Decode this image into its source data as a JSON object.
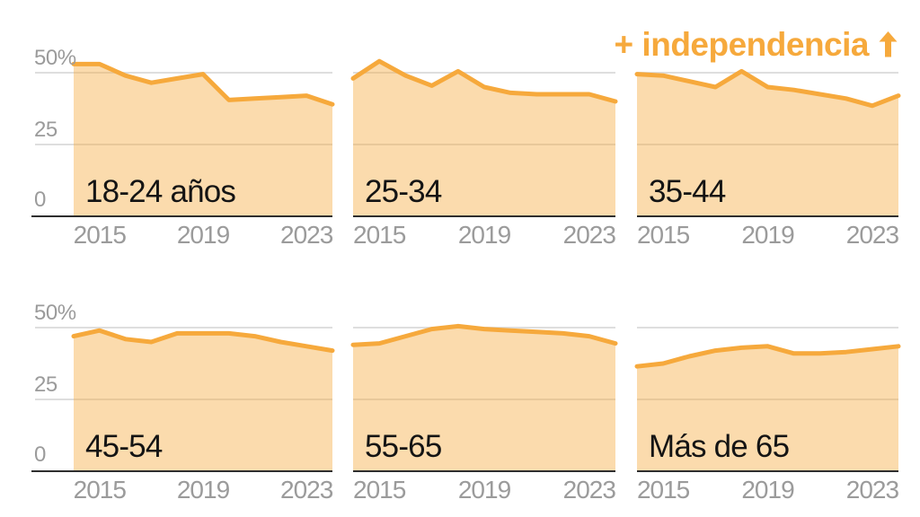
{
  "heading": {
    "label": "+ independencia",
    "arrow_icon": "up-arrow"
  },
  "colors": {
    "accent": "#F6A93C",
    "area_fill_opacity": 0.42,
    "grid": "#DEDEDE",
    "axis": "#2E2E2E",
    "tick_text": "#9B9B9B",
    "label_text": "#141414",
    "background": "#FFFFFF"
  },
  "chart_data": {
    "type": "area",
    "layout": "small-multiples 2 rows x 3 columns",
    "x": [
      2014,
      2015,
      2016,
      2017,
      2018,
      2019,
      2020,
      2021,
      2022,
      2023,
      2024
    ],
    "x_tick_years": [
      2015,
      2019,
      2023
    ],
    "x_tick_labels": [
      "2015",
      "2019",
      "2023"
    ],
    "y_tick_labels": [
      "50%",
      "25",
      "0"
    ],
    "y_tick_values": [
      50,
      25,
      0
    ],
    "ylim": [
      0,
      58
    ],
    "grid": "horizontal gridlines at 25 and 50, dark baseline at 0",
    "legend": "none",
    "panels": [
      {
        "label": "18-24 años",
        "values": [
          53,
          53,
          49,
          46.5,
          48,
          49.5,
          40.5,
          41,
          41.5,
          42,
          39
        ]
      },
      {
        "label": "25-34",
        "values": [
          48,
          54,
          49,
          45.5,
          50.5,
          45,
          43,
          42.5,
          42.5,
          42.5,
          40
        ]
      },
      {
        "label": "35-44",
        "values": [
          49.5,
          49,
          47,
          45,
          50.5,
          45,
          44,
          42.5,
          41,
          38.5,
          42
        ]
      },
      {
        "label": "45-54",
        "values": [
          47,
          49,
          46,
          45,
          48,
          48,
          48,
          47,
          45,
          43.5,
          42
        ]
      },
      {
        "label": "55-65",
        "values": [
          44,
          44.5,
          47,
          49.5,
          50.5,
          49.5,
          49,
          48.5,
          48,
          47,
          44.5
        ]
      },
      {
        "label": "Más de 65",
        "values": [
          36.5,
          37.5,
          40,
          42,
          43,
          43.5,
          41,
          41,
          41.5,
          42.5,
          43.5
        ]
      }
    ]
  }
}
